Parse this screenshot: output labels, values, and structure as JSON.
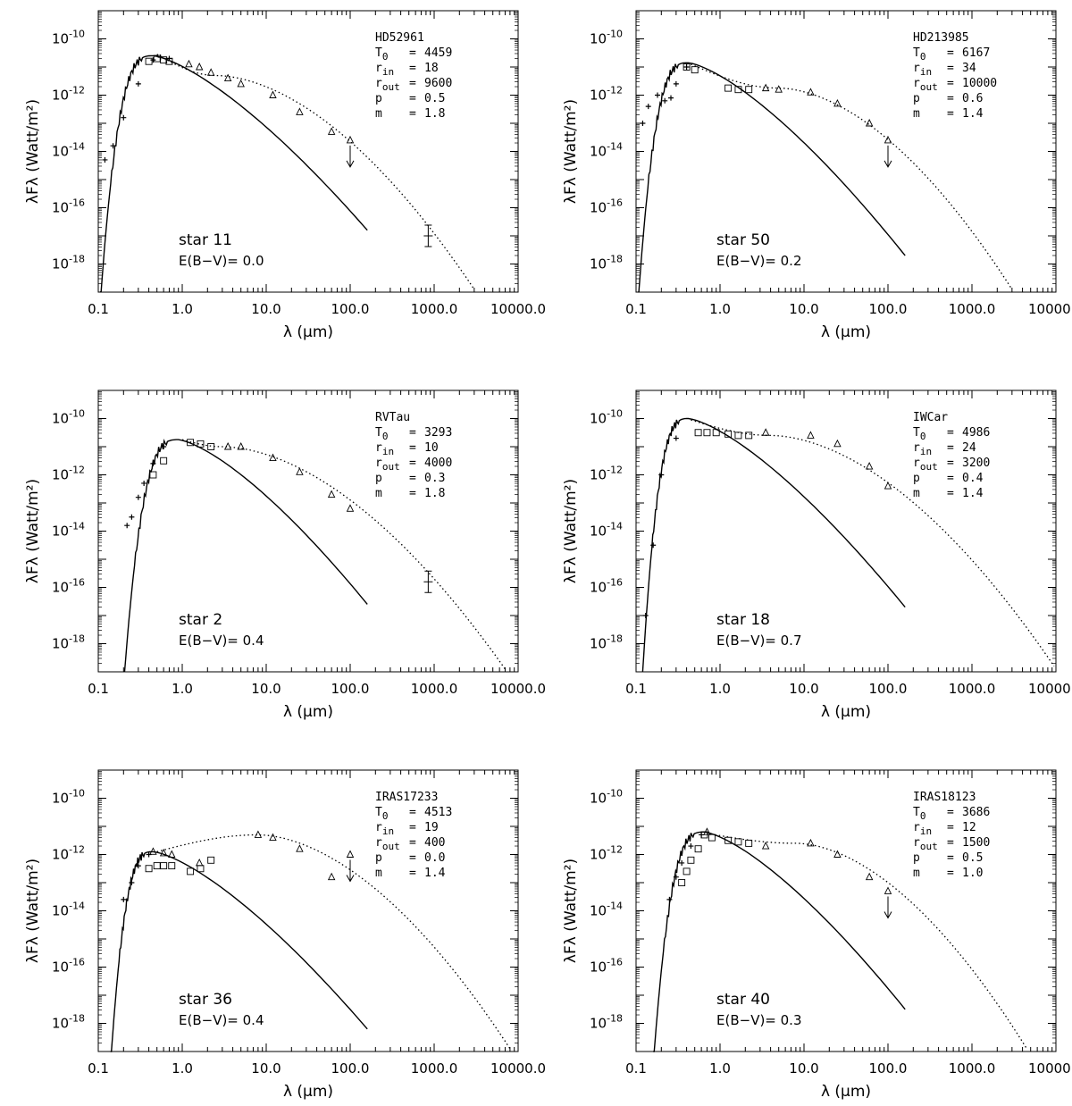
{
  "chart_data": [
    {
      "type": "scatter",
      "xlabel": "λ (μm)",
      "ylabel": "λFλ (Watt/m²)",
      "x_scale": "log",
      "y_scale": "log",
      "xlim": [
        0.1,
        10000
      ],
      "ylim": [
        1e-19,
        1e-09
      ],
      "x_ticks": [
        "0.1",
        "1.0",
        "10.0",
        "100.0",
        "1000.0",
        "10000.0"
      ],
      "y_ticks": [
        {
          "base": "10",
          "exp": "-10"
        },
        {
          "base": "10",
          "exp": "-12"
        },
        {
          "base": "10",
          "exp": "-14"
        },
        {
          "base": "10",
          "exp": "-16"
        },
        {
          "base": "10",
          "exp": "-18"
        }
      ],
      "star_label": "star 11",
      "ebv_label": "E(B−V)= 0.0",
      "info": {
        "name": "HD52961",
        "T0": "4459",
        "rin": "18",
        "rout": "9600",
        "p": "0.5",
        "m": "1.8"
      },
      "stellar": {
        "rise_lo": 0.105,
        "peak": 0.45,
        "logpeak": -10.6,
        "end": 160,
        "endlog": -16.8
      },
      "model": {
        "peak": 0.5,
        "logpeak": -10.55,
        "plateau": 2.5,
        "pval": -11.3,
        "end": 3000,
        "endlog": -18.9
      },
      "obs": [
        [
          0.12,
          -14.3
        ],
        [
          0.15,
          -13.8
        ],
        [
          0.2,
          -12.8
        ],
        [
          0.3,
          -11.6
        ],
        [
          0.45,
          -10.75
        ],
        [
          0.55,
          -10.65
        ],
        [
          0.7,
          -10.7
        ]
      ],
      "squares": [
        [
          0.4,
          -10.8
        ],
        [
          0.5,
          -10.7
        ],
        [
          0.6,
          -10.75
        ],
        [
          0.7,
          -10.8
        ]
      ],
      "triangles": [
        [
          1.2,
          -10.9
        ],
        [
          1.6,
          -11.0
        ],
        [
          2.2,
          -11.2
        ],
        [
          3.5,
          -11.4
        ],
        [
          5,
          -11.6
        ],
        [
          12,
          -12.0
        ],
        [
          25,
          -12.6
        ],
        [
          60,
          -13.3
        ],
        [
          100,
          -13.6
        ]
      ],
      "upper_limits": [
        100
      ],
      "error_points": [
        [
          850,
          -17.0
        ]
      ]
    },
    {
      "type": "scatter",
      "xlabel": "λ (μm)",
      "ylabel": "λFλ (Watt/m²)",
      "x_scale": "log",
      "y_scale": "log",
      "xlim": [
        0.1,
        10000
      ],
      "ylim": [
        1e-19,
        1e-09
      ],
      "x_ticks": [
        "0.1",
        "1.0",
        "10.0",
        "100.0",
        "1000.0",
        "10000.0"
      ],
      "y_ticks": [
        {
          "base": "10",
          "exp": "-10"
        },
        {
          "base": "10",
          "exp": "-12"
        },
        {
          "base": "10",
          "exp": "-14"
        },
        {
          "base": "10",
          "exp": "-16"
        },
        {
          "base": "10",
          "exp": "-18"
        }
      ],
      "star_label": "star 50",
      "ebv_label": "E(B−V)= 0.2",
      "info": {
        "name": "HD213985",
        "T0": "6167",
        "rin": "34",
        "rout": "10000",
        "p": "0.6",
        "m": "1.4"
      },
      "stellar": {
        "rise_lo": 0.105,
        "peak": 0.42,
        "logpeak": -10.85,
        "end": 160,
        "endlog": -17.7
      },
      "model": {
        "peak": 0.45,
        "logpeak": -10.9,
        "plateau": 5,
        "pval": -11.75,
        "end": 3000,
        "endlog": -18.9
      },
      "obs": [
        [
          0.12,
          -13.0
        ],
        [
          0.14,
          -12.4
        ],
        [
          0.18,
          -12.0
        ],
        [
          0.22,
          -12.2
        ],
        [
          0.26,
          -12.1
        ],
        [
          0.3,
          -11.6
        ],
        [
          0.4,
          -11.0
        ]
      ],
      "squares": [
        [
          0.4,
          -11.0
        ],
        [
          0.5,
          -11.1
        ],
        [
          1.25,
          -11.75
        ],
        [
          1.65,
          -11.8
        ],
        [
          2.2,
          -11.8
        ]
      ],
      "triangles": [
        [
          3.5,
          -11.75
        ],
        [
          5,
          -11.8
        ],
        [
          12,
          -11.9
        ],
        [
          25,
          -12.3
        ],
        [
          60,
          -13.0
        ],
        [
          100,
          -13.6
        ]
      ],
      "upper_limits": [
        100
      ],
      "error_points": []
    },
    {
      "type": "scatter",
      "xlabel": "λ (μm)",
      "ylabel": "λFλ (Watt/m²)",
      "x_scale": "log",
      "y_scale": "log",
      "xlim": [
        0.1,
        10000
      ],
      "ylim": [
        1e-19,
        1e-09
      ],
      "x_ticks": [
        "0.1",
        "1.0",
        "10.0",
        "100.0",
        "1000.0",
        "10000.0"
      ],
      "y_ticks": [
        {
          "base": "10",
          "exp": "-10"
        },
        {
          "base": "10",
          "exp": "-12"
        },
        {
          "base": "10",
          "exp": "-14"
        },
        {
          "base": "10",
          "exp": "-16"
        },
        {
          "base": "10",
          "exp": "-18"
        }
      ],
      "star_label": "star 2",
      "ebv_label": "E(B−V)= 0.4",
      "info": {
        "name": "RVTau",
        "T0": "3293",
        "rin": "10",
        "rout": "4000",
        "p": "0.3",
        "m": "1.8"
      },
      "stellar": {
        "rise_lo": 0.2,
        "peak": 0.9,
        "logpeak": -10.75,
        "end": 160,
        "endlog": -16.6
      },
      "model": {
        "peak": 1.0,
        "logpeak": -10.75,
        "plateau": 3,
        "pval": -11.0,
        "end": 7000,
        "endlog": -18.9
      },
      "obs": [
        [
          0.22,
          -13.8
        ],
        [
          0.25,
          -13.5
        ],
        [
          0.3,
          -12.8
        ],
        [
          0.35,
          -12.3
        ],
        [
          0.45,
          -11.6
        ],
        [
          0.6,
          -11.0
        ]
      ],
      "squares": [
        [
          0.45,
          -12.0
        ],
        [
          0.6,
          -11.5
        ],
        [
          1.25,
          -10.85
        ],
        [
          1.65,
          -10.9
        ],
        [
          2.2,
          -11.0
        ]
      ],
      "triangles": [
        [
          3.5,
          -11.0
        ],
        [
          5,
          -11.0
        ],
        [
          12,
          -11.4
        ],
        [
          25,
          -11.9
        ],
        [
          60,
          -12.7
        ],
        [
          100,
          -13.2
        ]
      ],
      "upper_limits": [],
      "error_points": [
        [
          850,
          -15.8
        ]
      ]
    },
    {
      "type": "scatter",
      "xlabel": "λ (μm)",
      "ylabel": "λFλ (Watt/m²)",
      "x_scale": "log",
      "y_scale": "log",
      "xlim": [
        0.1,
        10000
      ],
      "ylim": [
        1e-19,
        1e-09
      ],
      "x_ticks": [
        "0.1",
        "1.0",
        "10.0",
        "100.0",
        "1000.0",
        "10000.0"
      ],
      "y_ticks": [
        {
          "base": "10",
          "exp": "-10"
        },
        {
          "base": "10",
          "exp": "-12"
        },
        {
          "base": "10",
          "exp": "-14"
        },
        {
          "base": "10",
          "exp": "-16"
        },
        {
          "base": "10",
          "exp": "-18"
        }
      ],
      "star_label": "star 18",
      "ebv_label": "E(B−V)= 0.7",
      "info": {
        "name": "IWCar",
        "T0": "4986",
        "rin": "24",
        "rout": "3200",
        "p": "0.4",
        "m": "1.4"
      },
      "stellar": {
        "rise_lo": 0.12,
        "peak": 0.42,
        "logpeak": -10.0,
        "end": 160,
        "endlog": -16.7
      },
      "model": {
        "peak": 0.45,
        "logpeak": -10.05,
        "plateau": 4,
        "pval": -10.6,
        "end": 9500,
        "endlog": -18.8
      },
      "obs": [
        [
          0.13,
          -17.0
        ],
        [
          0.16,
          -14.5
        ],
        [
          0.2,
          -12.0
        ],
        [
          0.3,
          -10.7
        ]
      ],
      "squares": [
        [
          0.55,
          -10.5
        ],
        [
          0.7,
          -10.5
        ],
        [
          0.9,
          -10.5
        ],
        [
          1.25,
          -10.55
        ],
        [
          1.65,
          -10.6
        ],
        [
          2.2,
          -10.6
        ]
      ],
      "triangles": [
        [
          3.5,
          -10.5
        ],
        [
          12,
          -10.6
        ],
        [
          25,
          -10.9
        ],
        [
          60,
          -11.7
        ],
        [
          100,
          -12.4
        ]
      ],
      "upper_limits": [],
      "error_points": []
    },
    {
      "type": "scatter",
      "xlabel": "λ (μm)",
      "ylabel": "λFλ (Watt/m²)",
      "x_scale": "log",
      "y_scale": "log",
      "xlim": [
        0.1,
        10000
      ],
      "ylim": [
        1e-19,
        1e-09
      ],
      "x_ticks": [
        "0.1",
        "1.0",
        "10.0",
        "100.0",
        "1000.0",
        "10000.0"
      ],
      "y_ticks": [
        {
          "base": "10",
          "exp": "-10"
        },
        {
          "base": "10",
          "exp": "-12"
        },
        {
          "base": "10",
          "exp": "-14"
        },
        {
          "base": "10",
          "exp": "-16"
        },
        {
          "base": "10",
          "exp": "-18"
        }
      ],
      "star_label": "star 36",
      "ebv_label": "E(B−V)= 0.4",
      "info": {
        "name": "IRAS17233",
        "T0": "4513",
        "rin": "19",
        "rout": "400",
        "p": "0.0",
        "m": "1.4"
      },
      "stellar": {
        "rise_lo": 0.14,
        "peak": 0.45,
        "logpeak": -11.9,
        "end": 160,
        "endlog": -18.2
      },
      "model": {
        "peak": 0.5,
        "logpeak": -11.9,
        "plateau": 8,
        "pval": -11.3,
        "end": 8000,
        "endlog": -18.9
      },
      "obs": [
        [
          0.2,
          -13.6
        ],
        [
          0.25,
          -13.0
        ],
        [
          0.3,
          -12.4
        ],
        [
          0.4,
          -12.0
        ]
      ],
      "squares": [
        [
          0.4,
          -12.5
        ],
        [
          0.5,
          -12.4
        ],
        [
          0.6,
          -12.4
        ],
        [
          0.75,
          -12.4
        ],
        [
          1.25,
          -12.6
        ],
        [
          1.65,
          -12.5
        ],
        [
          2.2,
          -12.2
        ]
      ],
      "triangles": [
        [
          0.45,
          -11.9
        ],
        [
          0.6,
          -11.95
        ],
        [
          0.75,
          -12.0
        ],
        [
          1.6,
          -12.3
        ],
        [
          8,
          -11.3
        ],
        [
          12,
          -11.4
        ],
        [
          25,
          -11.8
        ],
        [
          60,
          -12.8
        ],
        [
          100,
          -12.0
        ]
      ],
      "upper_limits": [
        100
      ],
      "error_points": []
    },
    {
      "type": "scatter",
      "xlabel": "λ (μm)",
      "ylabel": "λFλ (Watt/m²)",
      "x_scale": "log",
      "y_scale": "log",
      "xlim": [
        0.1,
        10000
      ],
      "ylim": [
        1e-19,
        1e-09
      ],
      "x_ticks": [
        "0.1",
        "1.0",
        "10.0",
        "100.0",
        "1000.0",
        "10000.0"
      ],
      "y_ticks": [
        {
          "base": "10",
          "exp": "-10"
        },
        {
          "base": "10",
          "exp": "-12"
        },
        {
          "base": "10",
          "exp": "-14"
        },
        {
          "base": "10",
          "exp": "-16"
        },
        {
          "base": "10",
          "exp": "-18"
        }
      ],
      "star_label": "star 40",
      "ebv_label": "E(B−V)= 0.3",
      "info": {
        "name": "IRAS18123",
        "T0": "3686",
        "rin": "12",
        "rout": "1500",
        "p": "0.5",
        "m": "1.0"
      },
      "stellar": {
        "rise_lo": 0.16,
        "peak": 0.65,
        "logpeak": -11.2,
        "end": 160,
        "endlog": -17.5
      },
      "model": {
        "peak": 0.7,
        "logpeak": -11.25,
        "plateau": 8,
        "pval": -11.6,
        "end": 4500,
        "endlog": -18.9
      },
      "obs": [
        [
          0.25,
          -13.6
        ],
        [
          0.3,
          -12.8
        ],
        [
          0.35,
          -12.3
        ],
        [
          0.45,
          -11.7
        ],
        [
          0.6,
          -11.3
        ]
      ],
      "squares": [
        [
          0.35,
          -13.0
        ],
        [
          0.4,
          -12.6
        ],
        [
          0.45,
          -12.2
        ],
        [
          0.55,
          -11.8
        ],
        [
          0.65,
          -11.3
        ],
        [
          0.8,
          -11.4
        ],
        [
          1.25,
          -11.5
        ],
        [
          1.65,
          -11.55
        ],
        [
          2.2,
          -11.6
        ]
      ],
      "triangles": [
        [
          0.7,
          -11.2
        ],
        [
          3.5,
          -11.7
        ],
        [
          12,
          -11.6
        ],
        [
          25,
          -12.0
        ],
        [
          60,
          -12.8
        ],
        [
          100,
          -13.3
        ]
      ],
      "upper_limits": [
        100
      ],
      "error_points": []
    }
  ]
}
